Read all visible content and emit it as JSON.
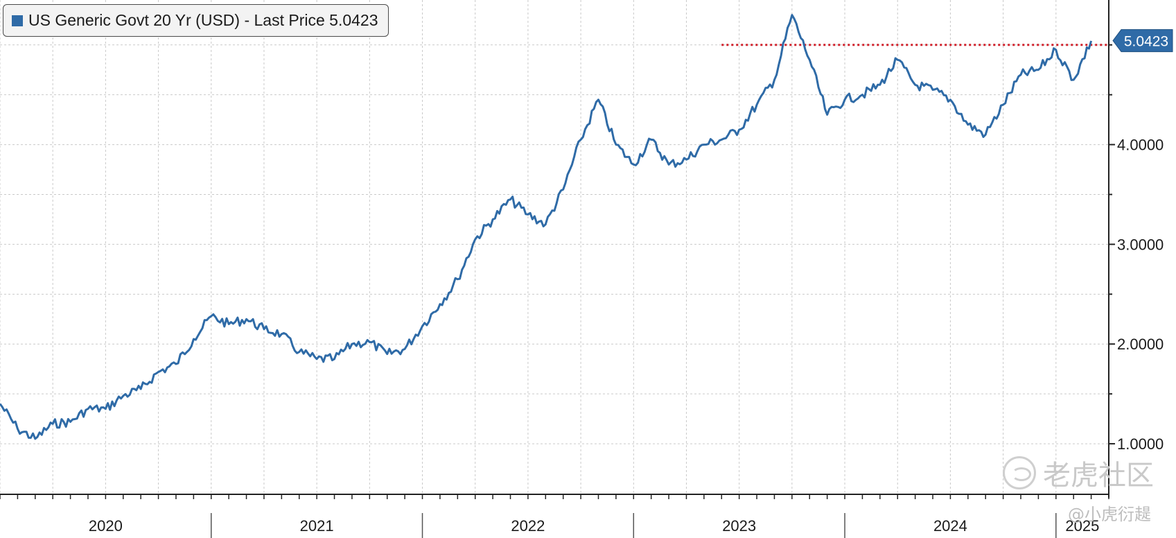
{
  "legend": {
    "text": "US Generic Govt 20 Yr (USD) - Last Price 5.0423",
    "color": "#2f6ba7"
  },
  "watermark": {
    "main": "老虎社区",
    "sub": "@小虎衍趧"
  },
  "chart_data": {
    "type": "line",
    "title": "",
    "xlabel": "",
    "ylabel": "",
    "ylim": [
      0.5,
      5.45
    ],
    "yticks": [
      1.0,
      2.0,
      3.0,
      4.0
    ],
    "ytick_labels": [
      "1.0000",
      "2.0000",
      "3.0000",
      "4.0000"
    ],
    "x_axis_labels": [
      "2020",
      "2021",
      "2022",
      "2023",
      "2024",
      "2025"
    ],
    "x_range": [
      "2020-01",
      "2025-03"
    ],
    "grid": true,
    "last_price": 5.0423,
    "last_price_label": "5.0423",
    "reference_line": {
      "value": 5.0,
      "from": "2023-06",
      "color": "#d0202a",
      "style": "dotted"
    },
    "series": [
      {
        "name": "US Generic Govt 20 Yr (USD)",
        "color": "#2f6ba7",
        "x": [
          "2020-01",
          "2020-02",
          "2020-03",
          "2020-04",
          "2020-05",
          "2020-06",
          "2020-07",
          "2020-08",
          "2020-09",
          "2020-10",
          "2020-11",
          "2020-12",
          "2021-01",
          "2021-02",
          "2021-03",
          "2021-04",
          "2021-05",
          "2021-06",
          "2021-07",
          "2021-08",
          "2021-09",
          "2021-10",
          "2021-11",
          "2021-12",
          "2022-01",
          "2022-02",
          "2022-03",
          "2022-04",
          "2022-05",
          "2022-06",
          "2022-07",
          "2022-08",
          "2022-09",
          "2022-10",
          "2022-11",
          "2022-12",
          "2023-01",
          "2023-02",
          "2023-03",
          "2023-04",
          "2023-05",
          "2023-06",
          "2023-07",
          "2023-08",
          "2023-09",
          "2023-10",
          "2023-11",
          "2023-12",
          "2024-01",
          "2024-02",
          "2024-03",
          "2024-04",
          "2024-05",
          "2024-06",
          "2024-07",
          "2024-08",
          "2024-09",
          "2024-10",
          "2024-11",
          "2024-12",
          "2025-01",
          "2025-02",
          "2025-03"
        ],
        "values": [
          1.4,
          1.15,
          1.05,
          1.2,
          1.22,
          1.35,
          1.35,
          1.48,
          1.55,
          1.72,
          1.8,
          2.05,
          2.28,
          2.2,
          2.25,
          2.15,
          2.1,
          1.92,
          1.85,
          1.85,
          2.0,
          2.02,
          1.9,
          1.95,
          2.18,
          2.4,
          2.65,
          3.05,
          3.25,
          3.45,
          3.3,
          3.2,
          3.55,
          4.05,
          4.45,
          4.0,
          3.8,
          4.05,
          3.8,
          3.85,
          4.0,
          4.05,
          4.15,
          4.4,
          4.65,
          5.3,
          4.85,
          4.3,
          4.45,
          4.5,
          4.6,
          4.85,
          4.6,
          4.55,
          4.45,
          4.2,
          4.1,
          4.4,
          4.7,
          4.75,
          4.95,
          4.65,
          5.04
        ]
      }
    ]
  }
}
